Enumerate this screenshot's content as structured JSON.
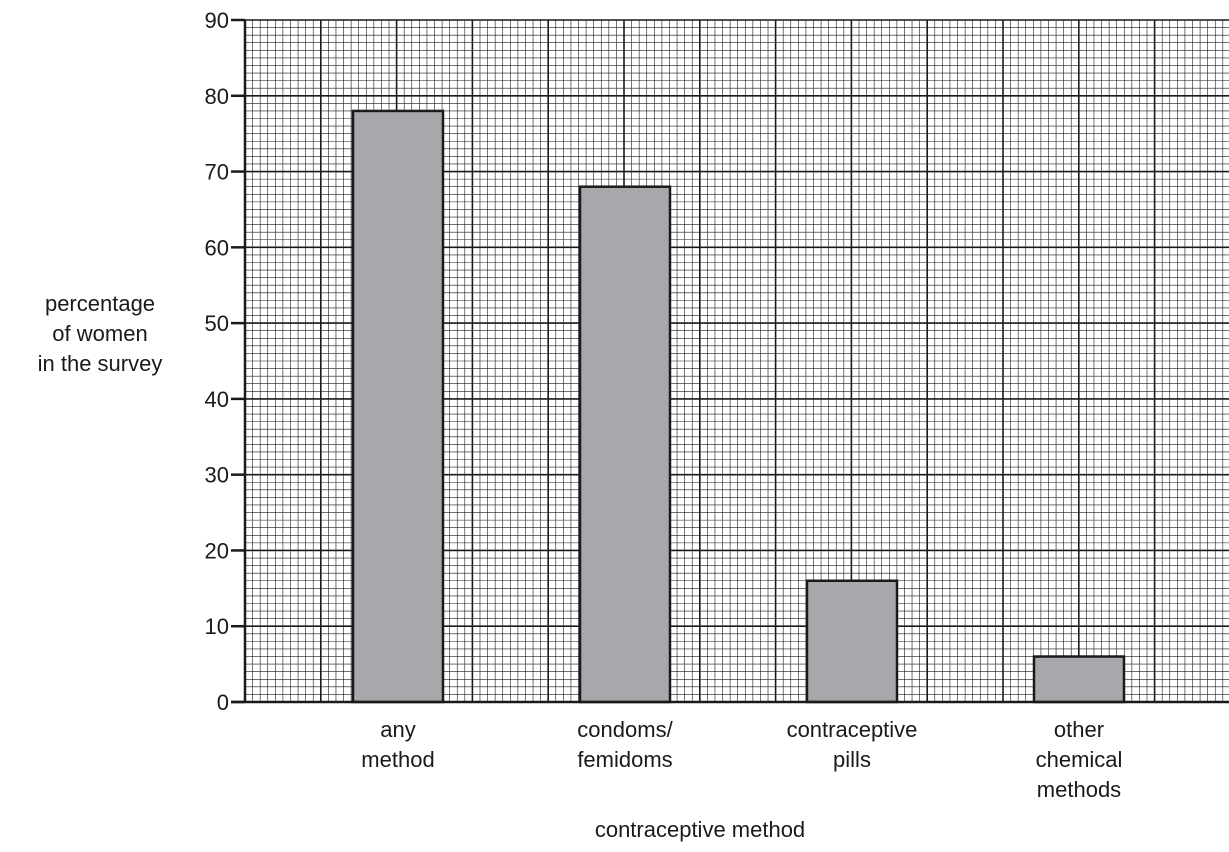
{
  "chart_data": {
    "type": "bar",
    "categories": [
      [
        "any",
        "method"
      ],
      [
        "condoms/",
        "femidoms"
      ],
      [
        "contraceptive",
        "pills"
      ],
      [
        "other",
        "chemical",
        "methods"
      ]
    ],
    "values": [
      78,
      68,
      16,
      6
    ],
    "ylabel": [
      "percentage",
      "of women",
      "in the survey"
    ],
    "xlabel": "contraceptive method",
    "ylim": [
      0,
      90
    ],
    "yticks": [
      0,
      10,
      20,
      30,
      40,
      50,
      60,
      70,
      80,
      90
    ],
    "grid": true,
    "colors": {
      "bar_fill": "#a7a8ab",
      "bar_stroke": "#1a1a1a",
      "grid_major": "#1a1a1a",
      "grid_minor": "#1a1a1a",
      "axis": "#1a1a1a"
    }
  }
}
